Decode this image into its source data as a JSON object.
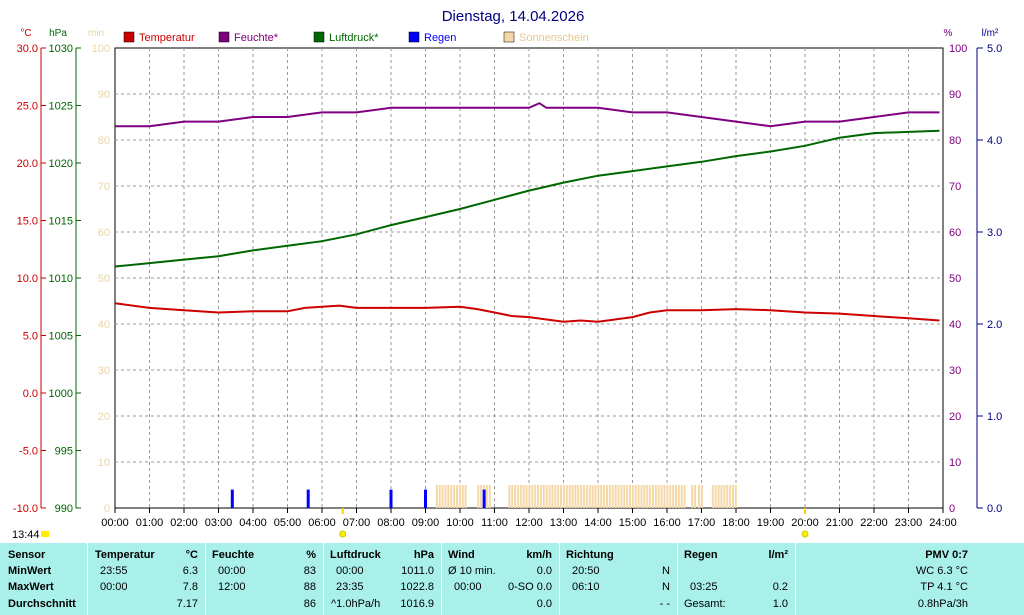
{
  "chart_data": {
    "type": "line",
    "title": "Dienstag, 14.04.2026",
    "x_ticks": [
      "00:00",
      "01:00",
      "02:00",
      "03:00",
      "04:00",
      "05:00",
      "06:00",
      "07:00",
      "08:00",
      "09:00",
      "10:00",
      "11:00",
      "12:00",
      "13:00",
      "14:00",
      "15:00",
      "16:00",
      "17:00",
      "18:00",
      "19:00",
      "20:00",
      "21:00",
      "22:00",
      "23:00",
      "24:00"
    ],
    "axes": {
      "temperature": {
        "unit": "°C",
        "ylim": [
          -10,
          30
        ],
        "ticks": [
          "30.0",
          "25.0",
          "20.0",
          "15.0",
          "10.0",
          "5.0",
          "0.0",
          "-5.0",
          "-10.0"
        ],
        "color": "#cc0000"
      },
      "pressure": {
        "unit": "hPa",
        "ylim": [
          990,
          1030
        ],
        "ticks": [
          "1030",
          "1025",
          "1020",
          "1015",
          "1010",
          "1005",
          "1000",
          "995",
          "990"
        ],
        "color": "#006600"
      },
      "sunshine": {
        "unit": "min",
        "ylim": [
          0,
          100
        ],
        "ticks": [
          "100",
          "90",
          "80",
          "70",
          "60",
          "50",
          "40",
          "30",
          "20",
          "10",
          "0"
        ],
        "color": "#f0d8a0"
      },
      "humidity": {
        "unit": "%",
        "ylim": [
          0,
          100
        ],
        "ticks": [
          "100",
          "90",
          "80",
          "70",
          "60",
          "50",
          "40",
          "30",
          "20",
          "10",
          "0"
        ],
        "color": "#800080"
      },
      "rain": {
        "unit": "l/m²",
        "ylim": [
          0,
          5
        ],
        "ticks": [
          "5.0",
          "4.0",
          "3.0",
          "2.0",
          "1.0",
          "0.0"
        ],
        "color": "#000080"
      }
    },
    "grid": true,
    "legend": [
      "Temperatur",
      "Feuchte*",
      "Luftdruck*",
      "Regen",
      "Sonnenschein"
    ],
    "series": [
      {
        "name": "Temperatur",
        "color": "#cc0000",
        "axis": "temperature",
        "x": [
          0,
          1,
          2,
          3,
          4,
          5,
          5.5,
          6,
          6.5,
          7,
          8,
          9,
          10,
          10.5,
          11,
          11.5,
          12,
          13,
          13.5,
          14,
          15,
          15.5,
          16,
          17,
          18,
          19,
          20,
          21,
          22,
          23,
          23.9
        ],
        "y": [
          7.8,
          7.4,
          7.2,
          7.0,
          7.1,
          7.1,
          7.4,
          7.5,
          7.6,
          7.4,
          7.4,
          7.4,
          7.5,
          7.3,
          7.0,
          6.7,
          6.6,
          6.2,
          6.3,
          6.2,
          6.6,
          7.0,
          7.2,
          7.2,
          7.3,
          7.2,
          7.0,
          6.9,
          6.7,
          6.5,
          6.3
        ]
      },
      {
        "name": "Feuchte*",
        "color": "#800080",
        "axis": "humidity",
        "x": [
          0,
          1,
          2,
          3,
          4,
          5,
          6,
          7,
          8,
          9,
          10,
          11,
          12,
          12.3,
          12.5,
          13,
          14,
          15,
          16,
          17,
          18,
          19,
          20,
          21,
          22,
          23,
          23.9
        ],
        "y": [
          83,
          83,
          84,
          84,
          85,
          85,
          86,
          86,
          87,
          87,
          87,
          87,
          87,
          88,
          87,
          87,
          87,
          86,
          86,
          85,
          84,
          83,
          84,
          84,
          85,
          86,
          86
        ]
      },
      {
        "name": "Luftdruck*",
        "color": "#006600",
        "axis": "pressure",
        "x": [
          0,
          1,
          2,
          3,
          4,
          5,
          6,
          7,
          8,
          9,
          10,
          11,
          12,
          13,
          14,
          15,
          16,
          17,
          18,
          19,
          20,
          21,
          22,
          23,
          23.9
        ],
        "y": [
          1011.0,
          1011.3,
          1011.6,
          1011.9,
          1012.4,
          1012.8,
          1013.2,
          1013.8,
          1014.6,
          1015.3,
          1016.0,
          1016.8,
          1017.6,
          1018.3,
          1018.9,
          1019.3,
          1019.7,
          1020.1,
          1020.6,
          1021.0,
          1021.5,
          1022.2,
          1022.6,
          1022.7,
          1022.8
        ]
      },
      {
        "name": "Regen",
        "color": "#0000ff",
        "axis": "rain",
        "x": [
          3.4,
          5.6,
          8.0,
          9.0,
          10.7
        ],
        "y": [
          0.2,
          0.2,
          0.2,
          0.2,
          0.2
        ]
      },
      {
        "name": "Sonnenschein",
        "color": "#f5d8a8",
        "axis": "sunshine",
        "ranges": [
          [
            9.3,
            10.2
          ],
          [
            10.5,
            10.9
          ],
          [
            11.4,
            16.5
          ],
          [
            16.7,
            16.8
          ],
          [
            16.9,
            17.0
          ],
          [
            17.3,
            18.0
          ]
        ],
        "value": 5
      }
    ]
  },
  "time_label": "13:44",
  "stats": {
    "sensor": {
      "header": "Sensor",
      "min": "MinWert",
      "max": "MaxWert",
      "avg": "Durchschnitt"
    },
    "temperature": {
      "header": "Temperatur",
      "unit": "°C",
      "min_time": "23:55",
      "min": "6.3",
      "max_time": "00:00",
      "max": "7.8",
      "avg": "7.17"
    },
    "humidity": {
      "header": "Feuchte",
      "unit": "%",
      "min_time": "00:00",
      "min": "83",
      "max_time": "12:00",
      "max": "88",
      "avg": "86"
    },
    "pressure": {
      "header": "Luftdruck",
      "unit": "hPa",
      "min_time": "00:00",
      "min": "1011.0",
      "max_time": "23:35",
      "max": "1022.8",
      "avg_note": "^1.0hPa/h",
      "avg": "1016.9"
    },
    "wind": {
      "header": "Wind",
      "unit": "km/h",
      "min_label": "Ø 10 min.",
      "min": "0.0",
      "max_time": "00:00",
      "max": "0.0",
      "max_dir": "0-SO",
      "avg": "0.0"
    },
    "direction": {
      "header": "Richtung",
      "min_time": "20:50",
      "min": "N",
      "max_time": "06:10",
      "max": "N",
      "avg": "- -"
    },
    "rain": {
      "header": "Regen",
      "unit": "l/m²",
      "max_time": "03:25",
      "max": "0.2",
      "total_label": "Gesamt:",
      "total": "1.0"
    },
    "pmv": {
      "header": "PMV 0:7",
      "wc": "WC 6.3 °C",
      "tp": "TP 4.1 °C",
      "trend": "0.8hPa/3h"
    }
  }
}
